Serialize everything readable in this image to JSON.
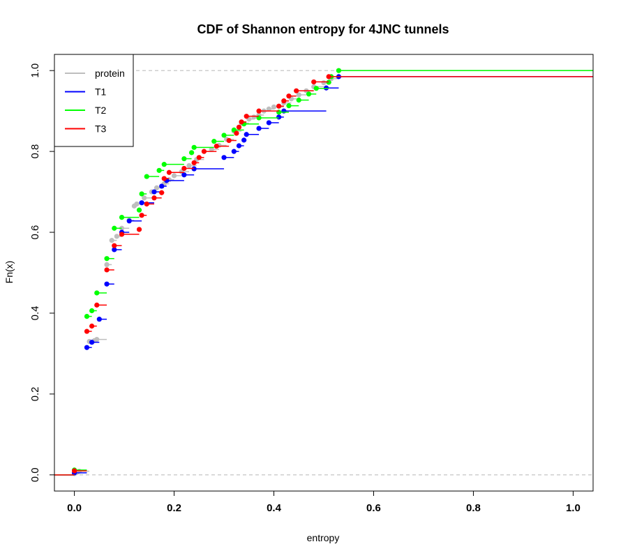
{
  "chart_data": {
    "type": "line",
    "step": true,
    "title": "CDF of Shannon entropy for 4JNC  tunnels",
    "xlabel": "entropy",
    "ylabel": "Fn(x)",
    "xlim": [
      -0.04,
      1.04
    ],
    "ylim": [
      -0.04,
      1.04
    ],
    "x_ticks": [
      0.0,
      0.2,
      0.4,
      0.6,
      0.8,
      1.0
    ],
    "x_tick_labels": [
      "0.0",
      "0.2",
      "0.4",
      "0.6",
      "0.8",
      "1.0"
    ],
    "y_ticks": [
      0.0,
      0.2,
      0.4,
      0.6,
      0.8,
      1.0
    ],
    "y_tick_labels": [
      "0.0",
      "0.2",
      "0.4",
      "0.6",
      "0.8",
      "1.0"
    ],
    "reference_lines": [
      0,
      1
    ],
    "legend_position": "top-left",
    "series": [
      {
        "name": "protein",
        "color": "#bebebe",
        "points": [
          [
            0.0,
            0.003
          ],
          [
            0.005,
            0.006
          ],
          [
            0.01,
            0.009
          ],
          [
            0.03,
            0.33
          ],
          [
            0.04,
            0.332
          ],
          [
            0.045,
            0.335
          ],
          [
            0.065,
            0.52
          ],
          [
            0.075,
            0.58
          ],
          [
            0.085,
            0.59
          ],
          [
            0.095,
            0.61
          ],
          [
            0.11,
            0.63
          ],
          [
            0.12,
            0.665
          ],
          [
            0.125,
            0.67
          ],
          [
            0.14,
            0.685
          ],
          [
            0.155,
            0.7
          ],
          [
            0.165,
            0.71
          ],
          [
            0.18,
            0.72
          ],
          [
            0.19,
            0.73
          ],
          [
            0.2,
            0.74
          ],
          [
            0.215,
            0.75
          ],
          [
            0.23,
            0.765
          ],
          [
            0.245,
            0.78
          ],
          [
            0.26,
            0.8
          ],
          [
            0.275,
            0.805
          ],
          [
            0.29,
            0.815
          ],
          [
            0.305,
            0.83
          ],
          [
            0.32,
            0.85
          ],
          [
            0.335,
            0.87
          ],
          [
            0.35,
            0.88
          ],
          [
            0.36,
            0.885
          ],
          [
            0.37,
            0.89
          ],
          [
            0.38,
            0.9
          ],
          [
            0.39,
            0.905
          ],
          [
            0.4,
            0.91
          ],
          [
            0.42,
            0.92
          ],
          [
            0.435,
            0.93
          ],
          [
            0.45,
            0.94
          ],
          [
            0.465,
            0.95
          ],
          [
            0.48,
            0.96
          ],
          [
            0.5,
            0.97
          ],
          [
            0.515,
            0.98
          ],
          [
            0.53,
            1.0
          ]
        ]
      },
      {
        "name": "T1",
        "color": "#0000ff",
        "points": [
          [
            0.0,
            0.005
          ],
          [
            0.025,
            0.315
          ],
          [
            0.035,
            0.328
          ],
          [
            0.05,
            0.385
          ],
          [
            0.065,
            0.472
          ],
          [
            0.08,
            0.557
          ],
          [
            0.095,
            0.6
          ],
          [
            0.11,
            0.628
          ],
          [
            0.135,
            0.673
          ],
          [
            0.16,
            0.7
          ],
          [
            0.175,
            0.714
          ],
          [
            0.185,
            0.728
          ],
          [
            0.22,
            0.742
          ],
          [
            0.24,
            0.757
          ],
          [
            0.3,
            0.785
          ],
          [
            0.32,
            0.8
          ],
          [
            0.33,
            0.814
          ],
          [
            0.34,
            0.828
          ],
          [
            0.345,
            0.842
          ],
          [
            0.37,
            0.857
          ],
          [
            0.39,
            0.871
          ],
          [
            0.41,
            0.885
          ],
          [
            0.42,
            0.9
          ],
          [
            0.505,
            0.957
          ],
          [
            0.53,
            0.985
          ]
        ]
      },
      {
        "name": "T2",
        "color": "#00ff00",
        "points": [
          [
            0.0,
            0.012
          ],
          [
            0.025,
            0.392
          ],
          [
            0.035,
            0.406
          ],
          [
            0.045,
            0.45
          ],
          [
            0.065,
            0.535
          ],
          [
            0.08,
            0.61
          ],
          [
            0.095,
            0.637
          ],
          [
            0.13,
            0.655
          ],
          [
            0.135,
            0.695
          ],
          [
            0.145,
            0.738
          ],
          [
            0.17,
            0.753
          ],
          [
            0.18,
            0.768
          ],
          [
            0.22,
            0.782
          ],
          [
            0.235,
            0.797
          ],
          [
            0.24,
            0.81
          ],
          [
            0.28,
            0.825
          ],
          [
            0.3,
            0.84
          ],
          [
            0.32,
            0.853
          ],
          [
            0.34,
            0.868
          ],
          [
            0.37,
            0.883
          ],
          [
            0.41,
            0.897
          ],
          [
            0.43,
            0.913
          ],
          [
            0.45,
            0.927
          ],
          [
            0.47,
            0.942
          ],
          [
            0.485,
            0.956
          ],
          [
            0.51,
            0.971
          ],
          [
            0.515,
            0.985
          ],
          [
            0.53,
            1.0
          ]
        ]
      },
      {
        "name": "T3",
        "color": "#ff0000",
        "points": [
          [
            0.0,
            0.01
          ],
          [
            0.025,
            0.355
          ],
          [
            0.035,
            0.368
          ],
          [
            0.045,
            0.42
          ],
          [
            0.065,
            0.507
          ],
          [
            0.08,
            0.567
          ],
          [
            0.095,
            0.595
          ],
          [
            0.13,
            0.607
          ],
          [
            0.135,
            0.642
          ],
          [
            0.145,
            0.67
          ],
          [
            0.16,
            0.685
          ],
          [
            0.175,
            0.698
          ],
          [
            0.18,
            0.733
          ],
          [
            0.19,
            0.748
          ],
          [
            0.22,
            0.758
          ],
          [
            0.24,
            0.772
          ],
          [
            0.25,
            0.785
          ],
          [
            0.26,
            0.8
          ],
          [
            0.285,
            0.813
          ],
          [
            0.31,
            0.827
          ],
          [
            0.325,
            0.845
          ],
          [
            0.33,
            0.86
          ],
          [
            0.335,
            0.873
          ],
          [
            0.345,
            0.887
          ],
          [
            0.37,
            0.9
          ],
          [
            0.41,
            0.912
          ],
          [
            0.42,
            0.925
          ],
          [
            0.43,
            0.937
          ],
          [
            0.445,
            0.95
          ],
          [
            0.48,
            0.972
          ],
          [
            0.51,
            0.985
          ]
        ]
      }
    ]
  }
}
